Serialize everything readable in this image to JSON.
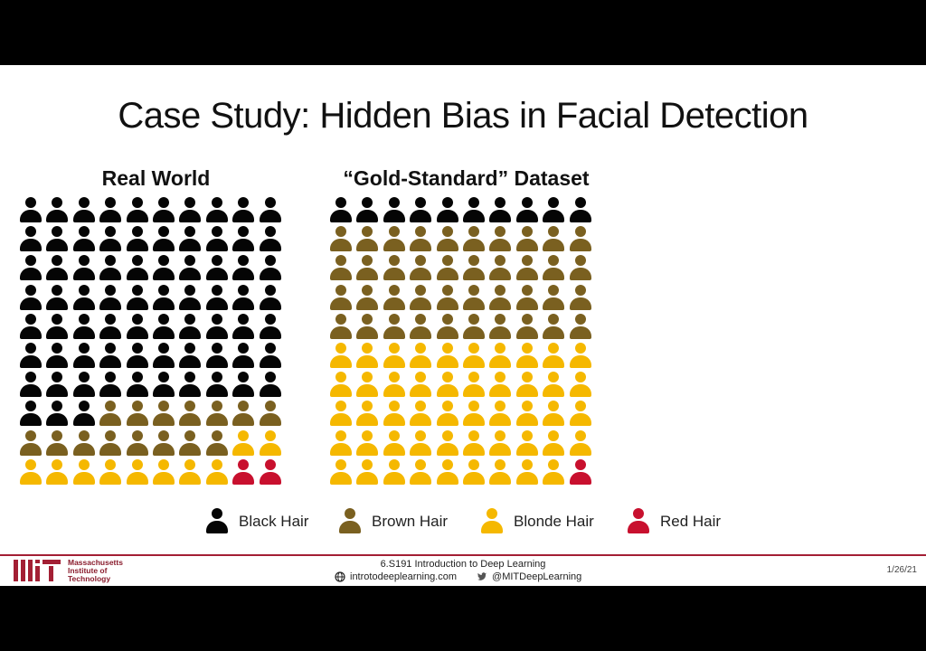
{
  "slide": {
    "title": "Case Study: Hidden Bias in Facial Detection"
  },
  "colors": {
    "black_hair": "#050505",
    "brown_hair": "#7a6020",
    "blonde_hair": "#f5b800",
    "red_hair": "#c8102e",
    "mit_red": "#a31f34"
  },
  "panels": {
    "real_world": {
      "title": "Real World",
      "columns": 10,
      "rows": 10,
      "counts": {
        "black": 73,
        "brown": 15,
        "blonde": 10,
        "red": 2
      }
    },
    "gold_standard": {
      "title": "“Gold-Standard” Dataset",
      "columns": 10,
      "rows": 10,
      "counts": {
        "black": 10,
        "brown": 40,
        "blonde": 49,
        "red": 1
      }
    }
  },
  "legend": [
    {
      "key": "black",
      "label": "Black Hair"
    },
    {
      "key": "brown",
      "label": "Brown Hair"
    },
    {
      "key": "blonde",
      "label": "Blonde Hair"
    },
    {
      "key": "red",
      "label": "Red Hair"
    }
  ],
  "footer": {
    "institution": [
      "Massachusetts",
      "Institute of",
      "Technology"
    ],
    "course": "6.S191 Introduction to Deep Learning",
    "website": "introtodeeplearning.com",
    "twitter": "@MITDeepLearning",
    "date": "1/26/21"
  }
}
